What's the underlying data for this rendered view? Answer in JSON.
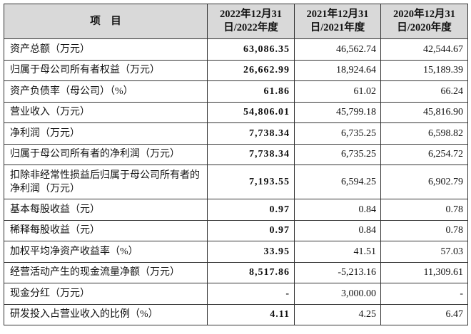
{
  "table": {
    "header": [
      "项　目",
      [
        "2022年12月31",
        "日/2022年度"
      ],
      [
        "2021年12月31",
        "日/2021年度"
      ],
      [
        "2020年12月31",
        "日/2020年度"
      ]
    ],
    "rows": [
      [
        "资产总额（万元）",
        "63,086.35",
        "46,562.74",
        "42,544.67"
      ],
      [
        "归属于母公司所有者权益（万元）",
        "26,662.99",
        "18,924.64",
        "15,189.39"
      ],
      [
        "资产负债率（母公司）（%）",
        "61.86",
        "61.02",
        "66.24"
      ],
      [
        "营业收入（万元）",
        "54,806.01",
        "45,799.18",
        "45,816.90"
      ],
      [
        "净利润（万元）",
        "7,738.34",
        "6,735.25",
        "6,598.82"
      ],
      [
        "归属于母公司所有者的净利润（万元）",
        "7,738.34",
        "6,735.25",
        "6,254.72"
      ],
      [
        "扣除非经常性损益后归属于母公司所有者的净利润（万元）",
        "7,193.55",
        "6,594.25",
        "6,902.79"
      ],
      [
        "基本每股收益（元）",
        "0.97",
        "0.84",
        "0.78"
      ],
      [
        "稀释每股收益（元）",
        "0.97",
        "0.84",
        "0.78"
      ],
      [
        "加权平均净资产收益率（%）",
        "33.95",
        "41.51",
        "57.03"
      ],
      [
        "经营活动产生的现金流量净额（万元）",
        "8,517.86",
        "-5,213.16",
        "11,309.61"
      ],
      [
        "现金分红（万元）",
        "-",
        "3,000.00",
        "-"
      ],
      [
        "研发投入占营业收入的比例（%）",
        "4.11",
        "4.25",
        "6.47"
      ]
    ]
  }
}
